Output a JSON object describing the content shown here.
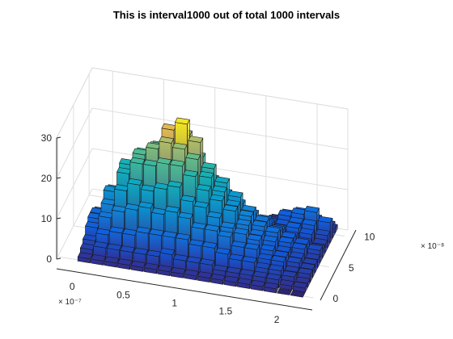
{
  "chart_data": {
    "type": "bar3-histogram",
    "title": "This is interval1000 out of total 1000 intervals",
    "x_axis": {
      "ticks": [
        "0",
        "0.5",
        "1",
        "1.5",
        "2"
      ],
      "tick_values": [
        0,
        0.5,
        1,
        1.5,
        2
      ],
      "exponent": "× 10⁻⁷",
      "range": [
        -0.2,
        2.3
      ]
    },
    "y_axis": {
      "ticks": [
        "0",
        "5",
        "10"
      ],
      "tick_values": [
        0,
        5,
        10
      ],
      "exponent": "× 10⁻⁸",
      "range": [
        -0.4,
        11
      ]
    },
    "z_axis": {
      "ticks": [
        "0",
        "10",
        "20",
        "30"
      ],
      "tick_values": [
        0,
        10,
        20,
        30
      ],
      "range": [
        0,
        30
      ]
    },
    "grid": true,
    "colormap": "parula",
    "bins": {
      "x_centers": [
        0.06,
        0.19,
        0.32,
        0.45,
        0.58,
        0.71,
        0.84,
        0.97,
        1.1,
        1.23,
        1.36,
        1.49,
        1.62,
        1.75,
        1.88,
        2.01,
        2.14
      ],
      "y_centers": [
        0.2,
        1.0,
        1.8,
        2.6,
        3.4,
        4.2,
        5.0,
        5.8,
        6.6,
        7.4,
        8.2,
        9.0,
        9.8,
        10.6
      ],
      "counts": [
        [
          1,
          2,
          3,
          5,
          6,
          6,
          5,
          3,
          2,
          1,
          1,
          1,
          0,
          0
        ],
        [
          1,
          3,
          5,
          8,
          10,
          12,
          11,
          8,
          5,
          3,
          2,
          1,
          0,
          0
        ],
        [
          1,
          3,
          6,
          10,
          14,
          17,
          18,
          14,
          9,
          6,
          3,
          1,
          1,
          0
        ],
        [
          1,
          3,
          6,
          11,
          16,
          20,
          21,
          20,
          16,
          10,
          6,
          3,
          1,
          0
        ],
        [
          1,
          3,
          7,
          12,
          15,
          20,
          23,
          22,
          21,
          14,
          9,
          4,
          2,
          0
        ],
        [
          1,
          3,
          7,
          11,
          16,
          21,
          25,
          27,
          22,
          17,
          11,
          5,
          2,
          0
        ],
        [
          1,
          4,
          7,
          12,
          17,
          21,
          24,
          29,
          25,
          18,
          12,
          6,
          2,
          0
        ],
        [
          1,
          3,
          7,
          11,
          14,
          19,
          22,
          25,
          20,
          15,
          10,
          5,
          2,
          0
        ],
        [
          1,
          3,
          6,
          9,
          13,
          16,
          18,
          19,
          15,
          11,
          7,
          4,
          1,
          0
        ],
        [
          1,
          3,
          6,
          9,
          11,
          14,
          15,
          16,
          12,
          8,
          5,
          3,
          1,
          0
        ],
        [
          1,
          2,
          5,
          8,
          9,
          12,
          12,
          13,
          10,
          7,
          4,
          2,
          1,
          0
        ],
        [
          1,
          2,
          4,
          6,
          8,
          9,
          10,
          10,
          8,
          5,
          4,
          2,
          1,
          0
        ],
        [
          1,
          2,
          4,
          6,
          7,
          7,
          8,
          8,
          7,
          5,
          4,
          3,
          2,
          1
        ],
        [
          1,
          2,
          3,
          4,
          5,
          6,
          7,
          6,
          5,
          4,
          4,
          5,
          4,
          1
        ],
        [
          1,
          2,
          3,
          4,
          4,
          4,
          5,
          5,
          4,
          5,
          5,
          6,
          5,
          2
        ],
        [
          0,
          1,
          2,
          2,
          3,
          3,
          4,
          4,
          3,
          4,
          5,
          7,
          4,
          1
        ],
        [
          0,
          1,
          1,
          2,
          2,
          2,
          2,
          3,
          2,
          2,
          3,
          5,
          3,
          1
        ]
      ]
    }
  }
}
